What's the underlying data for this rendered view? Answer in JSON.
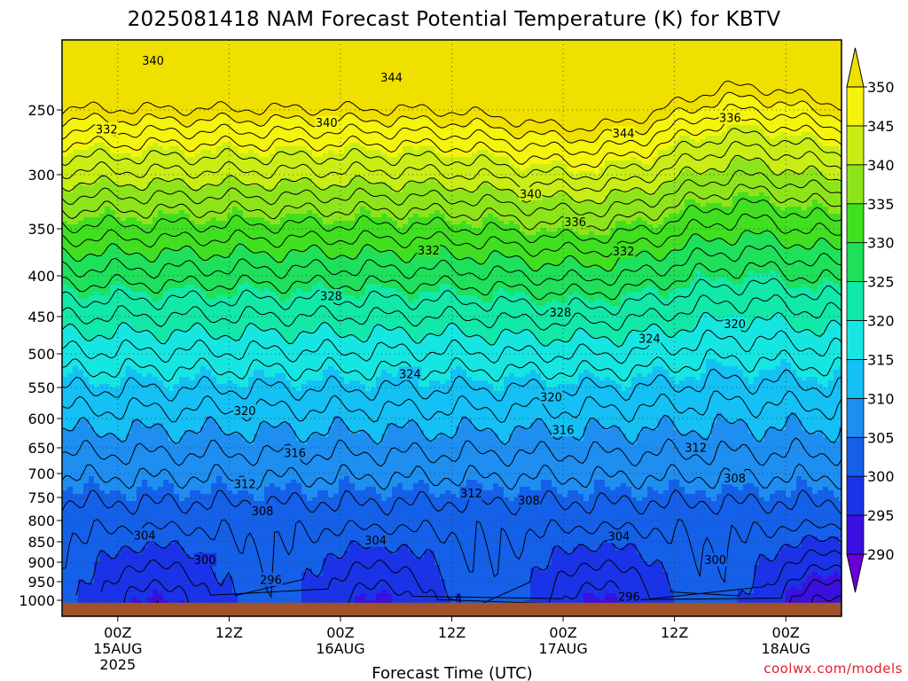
{
  "chart_data": {
    "type": "heatmap",
    "title": "2025081418 NAM Forecast Potential Temperature (K) for KBTV",
    "xlabel": "Forecast Time (UTC)",
    "ylabel": "",
    "y_scale": "pressure (log-like, inverted)",
    "ylim_hPa": [
      1000,
      200
    ],
    "y_ticks": [
      250,
      300,
      350,
      400,
      450,
      500,
      550,
      600,
      650,
      700,
      750,
      800,
      850,
      900,
      950,
      1000
    ],
    "x_ticks": [
      {
        "line1": "00Z",
        "line2": "15AUG",
        "line3": "2025",
        "hours": 6
      },
      {
        "line1": "12Z",
        "line2": "",
        "line3": "",
        "hours": 18
      },
      {
        "line1": "00Z",
        "line2": "16AUG",
        "line3": "",
        "hours": 30
      },
      {
        "line1": "12Z",
        "line2": "",
        "line3": "",
        "hours": 42
      },
      {
        "line1": "00Z",
        "line2": "17AUG",
        "line3": "",
        "hours": 54
      },
      {
        "line1": "12Z",
        "line2": "",
        "line3": "",
        "hours": 66
      },
      {
        "line1": "00Z",
        "line2": "18AUG",
        "line3": "",
        "hours": 78
      }
    ],
    "xlim_hours": [
      0,
      84
    ],
    "grid": "dotted at tick positions",
    "colorbar": {
      "labels": [
        "290",
        "295",
        "300",
        "305",
        "310",
        "315",
        "320",
        "325",
        "330",
        "335",
        "340",
        "345",
        "350"
      ],
      "levels": [
        290,
        295,
        300,
        305,
        310,
        315,
        320,
        325,
        330,
        335,
        340,
        345,
        350
      ],
      "colors": [
        "#6a00d8",
        "#3a10e0",
        "#1a33e8",
        "#1560e8",
        "#1e8ef0",
        "#14c0f4",
        "#16e6e2",
        "#12e8a8",
        "#1fe05a",
        "#40e020",
        "#8ee41a",
        "#c8ee16",
        "#f4f40c",
        "#f0e000"
      ],
      "extends": "both"
    },
    "contour_labels": [
      {
        "text": "340",
        "t": 9.8,
        "p": 215
      },
      {
        "text": "344",
        "t": 35.5,
        "p": 227
      },
      {
        "text": "332",
        "t": 4.8,
        "p": 265
      },
      {
        "text": "340",
        "t": 28.5,
        "p": 260
      },
      {
        "text": "344",
        "t": 60.5,
        "p": 268
      },
      {
        "text": "336",
        "t": 72,
        "p": 256
      },
      {
        "text": "340",
        "t": 50.5,
        "p": 318
      },
      {
        "text": "336",
        "t": 55.3,
        "p": 344
      },
      {
        "text": "332",
        "t": 39.5,
        "p": 373
      },
      {
        "text": "332",
        "t": 60.5,
        "p": 374
      },
      {
        "text": "328",
        "t": 29,
        "p": 425
      },
      {
        "text": "328",
        "t": 53.7,
        "p": 445
      },
      {
        "text": "324",
        "t": 63.3,
        "p": 480
      },
      {
        "text": "320",
        "t": 72.5,
        "p": 460
      },
      {
        "text": "324",
        "t": 37.5,
        "p": 530
      },
      {
        "text": "320",
        "t": 52.7,
        "p": 566
      },
      {
        "text": "320",
        "t": 19.7,
        "p": 588
      },
      {
        "text": "316",
        "t": 54,
        "p": 620
      },
      {
        "text": "316",
        "t": 25.1,
        "p": 660
      },
      {
        "text": "312",
        "t": 68.3,
        "p": 650
      },
      {
        "text": "312",
        "t": 19.7,
        "p": 722
      },
      {
        "text": "308",
        "t": 72.5,
        "p": 710
      },
      {
        "text": "312",
        "t": 44.1,
        "p": 742
      },
      {
        "text": "308",
        "t": 50.3,
        "p": 757
      },
      {
        "text": "308",
        "t": 21.6,
        "p": 780
      },
      {
        "text": "304",
        "t": 8.9,
        "p": 835
      },
      {
        "text": "304",
        "t": 33.8,
        "p": 847
      },
      {
        "text": "304",
        "t": 60,
        "p": 838
      },
      {
        "text": "300",
        "t": 15.4,
        "p": 895
      },
      {
        "text": "300",
        "t": 70.4,
        "p": 895
      },
      {
        "text": "296",
        "t": 22.5,
        "p": 945
      },
      {
        "text": "296",
        "t": 61.1,
        "p": 990
      }
    ],
    "ground": {
      "p_top": 1002,
      "color": "#a0522d"
    }
  },
  "credit": "coolwx.com/models"
}
